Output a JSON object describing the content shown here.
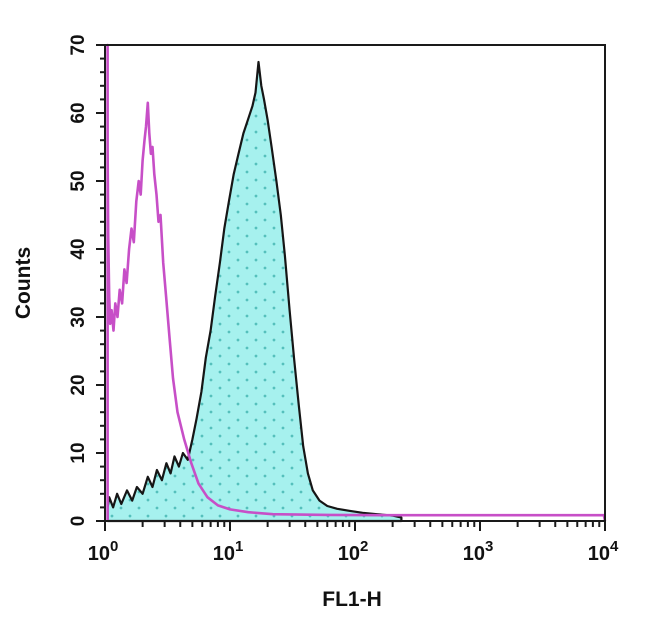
{
  "chart_data": {
    "type": "area",
    "title": "",
    "xlabel": "FL1-H",
    "ylabel": "Counts",
    "x_scale": "log",
    "xlim": [
      1,
      10000
    ],
    "ylim": [
      0,
      70
    ],
    "grid": false,
    "legend": "none",
    "x_axis": {
      "base": "10",
      "decade_exponents": [
        "0",
        "1",
        "2",
        "3",
        "4"
      ],
      "minor_ticks_per_decade": [
        2,
        3,
        4,
        5,
        6,
        7,
        8,
        9
      ]
    },
    "y_axis": {
      "tick_labels": [
        "0",
        "10",
        "20",
        "30",
        "40",
        "50",
        "60",
        "70"
      ],
      "major_step": 10,
      "minor_step": 2
    },
    "series": [
      {
        "name": "stained-filled-histogram",
        "style": "filled",
        "outline_color": "#161616",
        "fill_color": "#a6f1ee",
        "dot_texture_color": "#55c0bc",
        "points": [
          [
            1.05,
            0
          ],
          [
            1.05,
            2
          ],
          [
            1.08,
            3.5
          ],
          [
            1.16,
            2
          ],
          [
            1.25,
            4
          ],
          [
            1.35,
            2.5
          ],
          [
            1.5,
            4.5
          ],
          [
            1.65,
            3
          ],
          [
            1.8,
            5
          ],
          [
            2.0,
            4
          ],
          [
            2.2,
            6.5
          ],
          [
            2.4,
            5
          ],
          [
            2.6,
            7.5
          ],
          [
            2.85,
            6
          ],
          [
            3.1,
            8.5
          ],
          [
            3.35,
            7
          ],
          [
            3.6,
            9.5
          ],
          [
            3.9,
            8
          ],
          [
            4.2,
            10
          ],
          [
            4.6,
            9
          ],
          [
            5.0,
            12
          ],
          [
            5.4,
            15
          ],
          [
            5.9,
            19
          ],
          [
            6.4,
            24
          ],
          [
            7.0,
            28
          ],
          [
            7.6,
            33
          ],
          [
            8.3,
            38
          ],
          [
            9.0,
            43
          ],
          [
            9.8,
            47
          ],
          [
            10.7,
            51
          ],
          [
            11.7,
            54
          ],
          [
            12.8,
            57
          ],
          [
            13.9,
            59
          ],
          [
            15.1,
            61
          ],
          [
            16.0,
            63
          ],
          [
            16.9,
            67.5
          ],
          [
            17.8,
            64
          ],
          [
            18.7,
            62
          ],
          [
            20.0,
            59
          ],
          [
            21.5,
            55
          ],
          [
            23.5,
            50
          ],
          [
            25.5,
            45
          ],
          [
            27.5,
            39
          ],
          [
            30,
            31
          ],
          [
            32.5,
            24
          ],
          [
            35.5,
            17
          ],
          [
            38.5,
            11
          ],
          [
            42,
            7
          ],
          [
            46,
            4.5
          ],
          [
            52,
            3
          ],
          [
            60,
            2.2
          ],
          [
            72,
            1.8
          ],
          [
            90,
            1.5
          ],
          [
            115,
            1.2
          ],
          [
            150,
            1
          ],
          [
            200,
            0.8
          ],
          [
            235,
            0.5
          ],
          [
            235,
            0
          ]
        ]
      },
      {
        "name": "open-histogram-control",
        "style": "open",
        "outline_color": "#c74fc7",
        "fill_color": "none",
        "points": [
          [
            1.05,
            0
          ],
          [
            1.05,
            70
          ],
          [
            1.05,
            55
          ],
          [
            1.06,
            42
          ],
          [
            1.08,
            33
          ],
          [
            1.1,
            29
          ],
          [
            1.13,
            31
          ],
          [
            1.17,
            28
          ],
          [
            1.21,
            32
          ],
          [
            1.26,
            30
          ],
          [
            1.31,
            34
          ],
          [
            1.37,
            32
          ],
          [
            1.43,
            37
          ],
          [
            1.49,
            35
          ],
          [
            1.56,
            40
          ],
          [
            1.63,
            43
          ],
          [
            1.7,
            41
          ],
          [
            1.78,
            47
          ],
          [
            1.86,
            50
          ],
          [
            1.93,
            48
          ],
          [
            2.0,
            53
          ],
          [
            2.07,
            56
          ],
          [
            2.13,
            58
          ],
          [
            2.2,
            61.5
          ],
          [
            2.26,
            57
          ],
          [
            2.33,
            54
          ],
          [
            2.4,
            55
          ],
          [
            2.48,
            51
          ],
          [
            2.58,
            48
          ],
          [
            2.68,
            44
          ],
          [
            2.78,
            45
          ],
          [
            2.92,
            38
          ],
          [
            3.08,
            33
          ],
          [
            3.28,
            27
          ],
          [
            3.5,
            21
          ],
          [
            3.8,
            16
          ],
          [
            4.3,
            12
          ],
          [
            4.9,
            8.5
          ],
          [
            5.6,
            5.5
          ],
          [
            6.6,
            3.5
          ],
          [
            8.0,
            2.3
          ],
          [
            10,
            1.7
          ],
          [
            14,
            1.3
          ],
          [
            22,
            1
          ],
          [
            60,
            0.9
          ],
          [
            200,
            0.85
          ],
          [
            1500,
            0.85
          ],
          [
            9800,
            0.85
          ],
          [
            10000,
            0
          ]
        ]
      }
    ]
  },
  "frame": {
    "color": "#1a1a1a"
  }
}
